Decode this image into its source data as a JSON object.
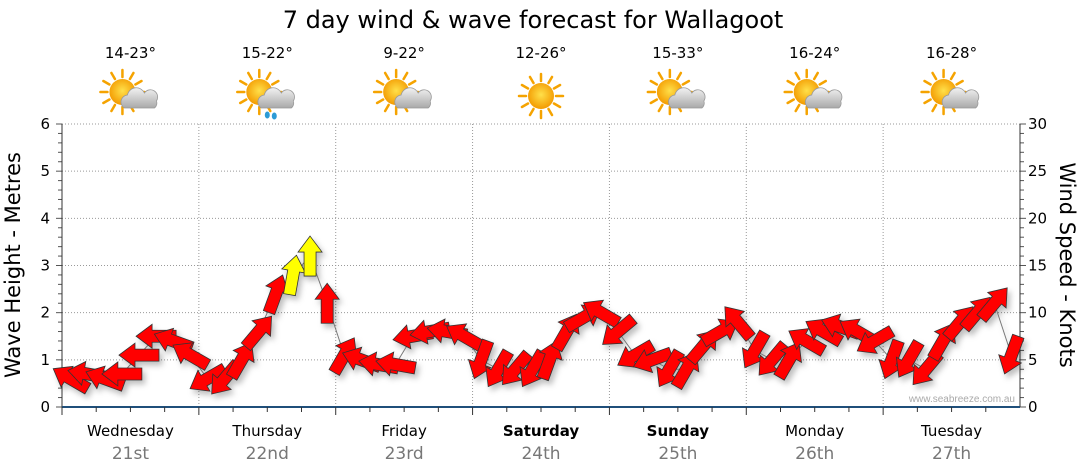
{
  "chart_data": {
    "type": "scatter",
    "title": "7 day wind & wave forecast for Wallagoot",
    "ylabel_left": "Wave Height - Metres",
    "ylabel_right": "Wind Speed - Knots",
    "ylim_left": [
      0,
      6
    ],
    "ylim_right": [
      0,
      30
    ],
    "yticks_left": [
      "0",
      "1",
      "2",
      "3",
      "4",
      "5",
      "6"
    ],
    "yticks_right": [
      "0",
      "5",
      "10",
      "15",
      "20",
      "25",
      "30"
    ],
    "grid": true,
    "watermark": "www.seabreeze.com.au",
    "days": [
      {
        "name": "Wednesday",
        "date": "21st",
        "bold": false,
        "temp": "14-23°",
        "icon": "partly-cloudy-icon"
      },
      {
        "name": "Thursday",
        "date": "22nd",
        "bold": false,
        "temp": "15-22°",
        "icon": "showers-icon"
      },
      {
        "name": "Friday",
        "date": "23rd",
        "bold": false,
        "temp": "9-22°",
        "icon": "partly-cloudy-icon"
      },
      {
        "name": "Saturday",
        "date": "24th",
        "bold": true,
        "temp": "12-26°",
        "icon": "sunny-icon"
      },
      {
        "name": "Sunday",
        "date": "25th",
        "bold": true,
        "temp": "15-33°",
        "icon": "partly-cloudy-icon"
      },
      {
        "name": "Monday",
        "date": "26th",
        "bold": false,
        "temp": "16-24°",
        "icon": "partly-cloudy-icon"
      },
      {
        "name": "Tuesday",
        "date": "27th",
        "bold": false,
        "temp": "16-28°",
        "icon": "partly-cloudy-icon"
      }
    ],
    "points_per_day": 8,
    "wind_speed_knots": [
      3,
      3.5,
      3,
      3.5,
      5.5,
      7.5,
      7,
      5.5,
      3,
      3,
      5,
      8,
      12,
      14,
      16,
      11,
      5.5,
      5,
      4.5,
      4.5,
      7.5,
      8,
      8,
      7.5,
      5,
      4,
      4,
      4,
      5,
      8,
      9.5,
      10,
      8,
      5.5,
      5,
      4,
      4,
      6.5,
      8,
      9,
      6,
      5,
      5,
      7,
      8,
      8.5,
      8,
      7,
      5,
      5,
      4,
      7,
      9,
      10,
      11,
      5.5
    ],
    "wind_direction_deg": [
      300,
      280,
      290,
      270,
      270,
      270,
      290,
      300,
      240,
      220,
      30,
      40,
      20,
      10,
      0,
      0,
      30,
      290,
      280,
      280,
      260,
      260,
      280,
      300,
      200,
      210,
      220,
      210,
      20,
      30,
      60,
      300,
      230,
      240,
      250,
      210,
      30,
      40,
      60,
      320,
      210,
      220,
      30,
      300,
      300,
      290,
      300,
      240,
      200,
      210,
      220,
      30,
      40,
      40,
      40,
      200
    ],
    "color_threshold_knots": 13,
    "colors": {
      "low": "#ff0000",
      "high": "#ffff00",
      "grid": "#999999",
      "axis": "#1f4f7a"
    }
  }
}
